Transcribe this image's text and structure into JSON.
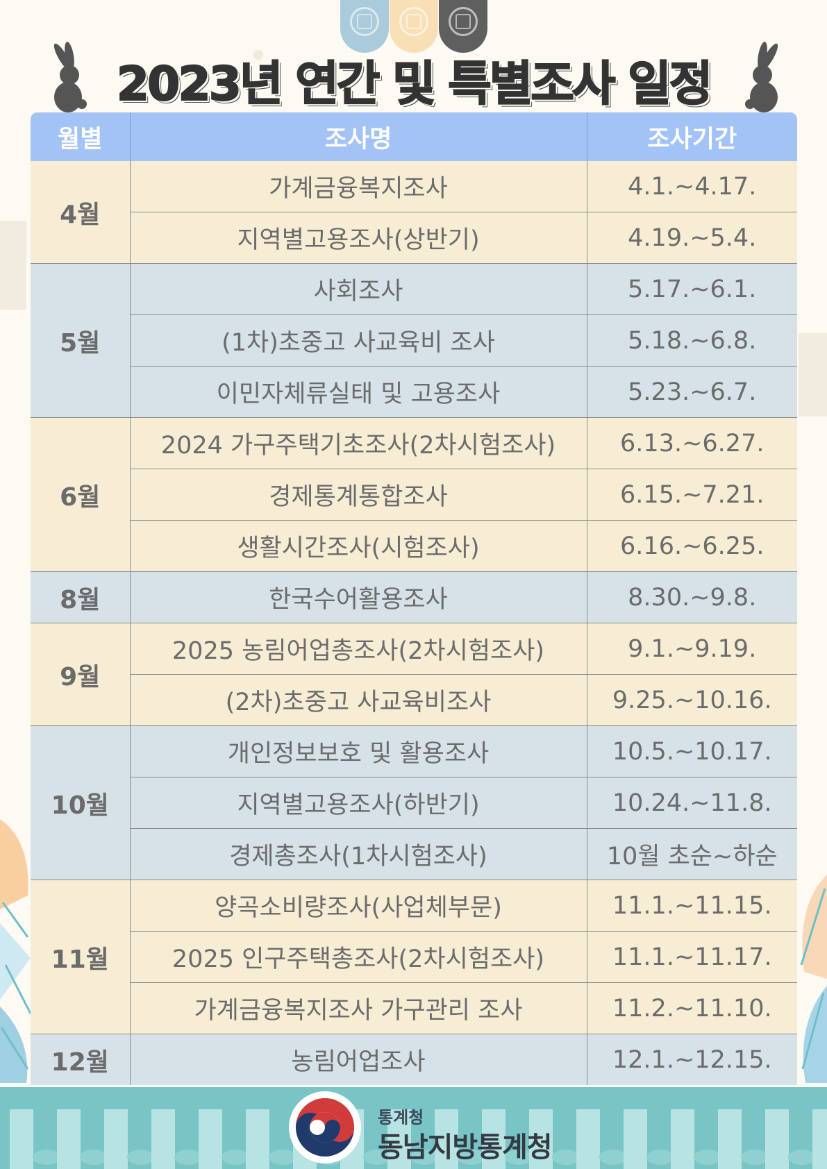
{
  "title": "2023년 연간 및 특별조사 일정",
  "table": {
    "headers": [
      "월별",
      "조사명",
      "조사기간"
    ],
    "groups": [
      {
        "month": "4월",
        "tone": "cream",
        "rows": [
          {
            "name": "가계금융복지조사",
            "period": "4.1.~4.17."
          },
          {
            "name": "지역별고용조사(상반기)",
            "period": "4.19.~5.4."
          }
        ]
      },
      {
        "month": "5월",
        "tone": "blue",
        "rows": [
          {
            "name": "사회조사",
            "period": "5.17.~6.1."
          },
          {
            "name": "(1차)초중고 사교육비 조사",
            "period": "5.18.~6.8."
          },
          {
            "name": "이민자체류실태 및 고용조사",
            "period": "5.23.~6.7."
          }
        ]
      },
      {
        "month": "6월",
        "tone": "cream",
        "rows": [
          {
            "name": "2024 가구주택기초조사(2차시험조사)",
            "period": "6.13.~6.27."
          },
          {
            "name": "경제통계통합조사",
            "period": "6.15.~7.21."
          },
          {
            "name": "생활시간조사(시험조사)",
            "period": "6.16.~6.25."
          }
        ]
      },
      {
        "month": "8월",
        "tone": "blue",
        "rows": [
          {
            "name": "한국수어활용조사",
            "period": "8.30.~9.8."
          }
        ]
      },
      {
        "month": "9월",
        "tone": "cream",
        "rows": [
          {
            "name": "2025 농림어업총조사(2차시험조사)",
            "period": "9.1.~9.19."
          },
          {
            "name": "(2차)초중고 사교육비조사",
            "period": "9.25.~10.16."
          }
        ]
      },
      {
        "month": "10월",
        "tone": "blue",
        "rows": [
          {
            "name": "개인정보보호 및 활용조사",
            "period": "10.5.~10.17."
          },
          {
            "name": "지역별고용조사(하반기)",
            "period": "10.24.~11.8."
          },
          {
            "name": "경제총조사(1차시험조사)",
            "period": "10월 초순~하순"
          }
        ]
      },
      {
        "month": "11월",
        "tone": "cream",
        "rows": [
          {
            "name": "양곡소비량조사(사업체부문)",
            "period": "11.1.~11.15."
          },
          {
            "name": "2025 인구주택총조사(2차시험조사)",
            "period": "11.1.~11.17."
          },
          {
            "name": "가계금융복지조사 가구관리 조사",
            "period": "11.2.~11.10."
          }
        ]
      },
      {
        "month": "12월",
        "tone": "blue",
        "rows": [
          {
            "name": "농림어업조사",
            "period": "12.1.~12.15."
          }
        ]
      }
    ]
  },
  "footer": {
    "org_sub": "통계청",
    "org_main": "동남지방통계청"
  },
  "icons": {
    "knobs": [
      "lattice-knob-icon",
      "lattice-knob-icon",
      "lattice-knob-icon"
    ],
    "rabbit": "rabbit-icon",
    "logo": "taegeuk-logo-icon"
  },
  "colors": {
    "background": "#fcfaf2",
    "header": "#a3c3f7",
    "row_cream": "#f7edd4",
    "row_blue": "#d6e2e8",
    "title": "#333333",
    "footer": "#79c5c6",
    "knob_blue": "#a9cbdb",
    "knob_peach": "#f9dfb5",
    "knob_gray": "#5f5f5f"
  }
}
